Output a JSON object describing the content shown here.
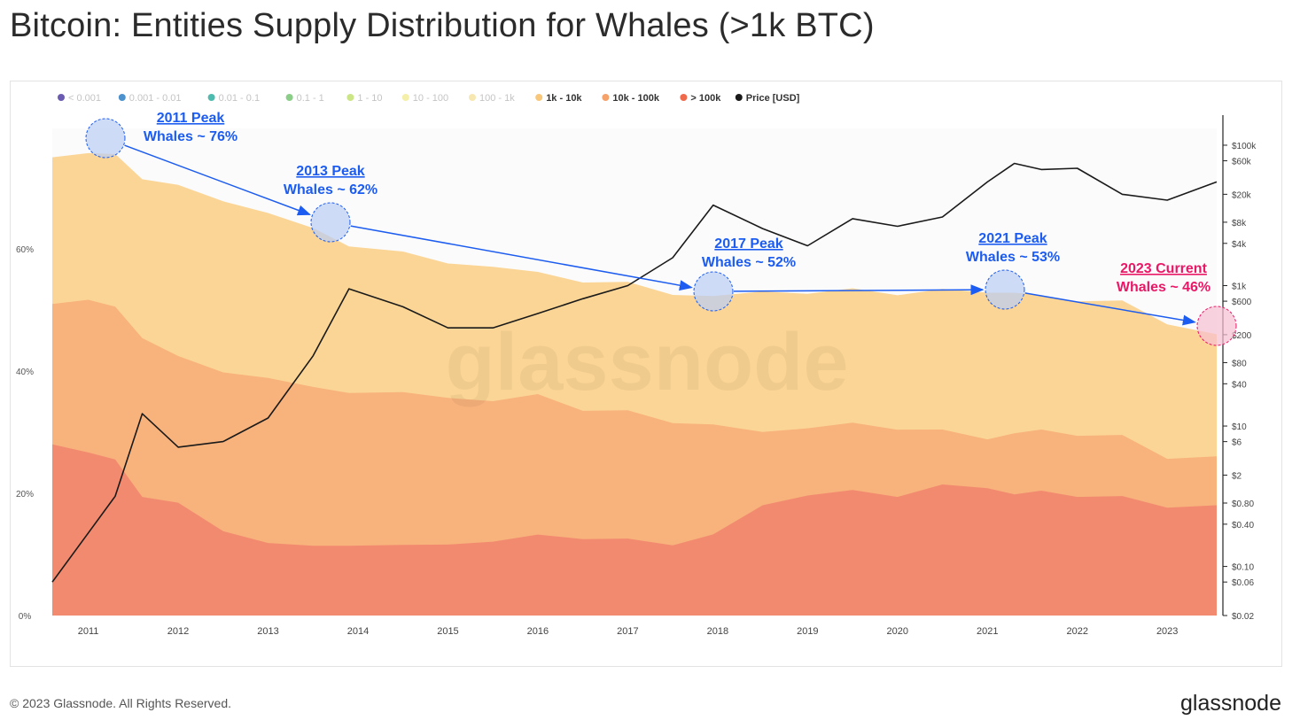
{
  "title": "Bitcoin: Entities Supply Distribution for Whales (>1k BTC)",
  "footer": {
    "copyright": "© 2023 Glassnode. All Rights Reserved.",
    "brand": "glassnode"
  },
  "watermark": "glassnode",
  "colors": {
    "lt0001": "#5b4aa8",
    "b0001_001": "#3a86c6",
    "b001_01": "#3ab5a6",
    "b01_1": "#7dc97b",
    "b1_10": "#c5e27a",
    "b10_100": "#f3eda0",
    "b100_1k": "#f6e4a8",
    "b1k_10k": "#fbd595",
    "b10k_100k": "#f8b27c",
    "gt100k": "#f28a6f",
    "price": "#1a1a1a",
    "annotation_blue": "#1c5cf0",
    "annotation_pink": "#ea1766"
  },
  "legend": [
    {
      "label": "< 0.001",
      "color": "#5b4aa8",
      "active": false
    },
    {
      "label": "0.001 - 0.01",
      "color": "#3a86c6",
      "active": false
    },
    {
      "label": "0.01 - 0.1",
      "color": "#3ab5a6",
      "active": false
    },
    {
      "label": "0.1 - 1",
      "color": "#7dc97b",
      "active": false
    },
    {
      "label": "1 - 10",
      "color": "#c5e27a",
      "active": false
    },
    {
      "label": "10 - 100",
      "color": "#f3eda0",
      "active": false
    },
    {
      "label": "100 - 1k",
      "color": "#f6e4a8",
      "active": false
    },
    {
      "label": "1k - 10k",
      "color": "#f9c779",
      "active": true
    },
    {
      "label": "10k - 100k",
      "color": "#f5a26b",
      "active": true
    },
    {
      "label": "> 100k",
      "color": "#ef6a4d",
      "active": true
    },
    {
      "label": "Price [USD]",
      "color": "#1a1a1a",
      "active": true
    }
  ],
  "annotations": [
    {
      "line1": "2011 Peak",
      "line2": "Whales ~ 76%",
      "color": "#1c5cf0"
    },
    {
      "line1": "2013 Peak",
      "line2": "Whales ~ 62%",
      "color": "#1c5cf0"
    },
    {
      "line1": "2017 Peak",
      "line2": "Whales ~ 52%",
      "color": "#1c5cf0"
    },
    {
      "line1": "2021 Peak",
      "line2": "Whales ~ 53%",
      "color": "#1c5cf0"
    },
    {
      "line1": "2023 Current",
      "line2": "Whales ~ 46%",
      "color": "#ea1766"
    }
  ],
  "chart_data": {
    "type": "area",
    "x_ticks": [
      "2011",
      "2012",
      "2013",
      "2014",
      "2015",
      "2016",
      "2017",
      "2018",
      "2019",
      "2020",
      "2021",
      "2022",
      "2023"
    ],
    "y_left_ticks": [
      "0%",
      "20%",
      "40%",
      "60%"
    ],
    "y_right_ticks": [
      "$100k",
      "$60k",
      "$20k",
      "$8k",
      "$4k",
      "$1k",
      "$600",
      "$200",
      "$80",
      "$40",
      "$10",
      "$6",
      "$2",
      "$0.80",
      "$0.40",
      "$0.10",
      "$0.06",
      "$0.02"
    ],
    "y_left_range": [
      0,
      79
    ],
    "y_right_scale": "log",
    "y_right_range": [
      0.02,
      150000
    ],
    "x_range": [
      2010.6,
      2023.55
    ],
    "grid": false,
    "legend_position": "top",
    "x": [
      2010.6,
      2011.0,
      2011.3,
      2011.6,
      2012.0,
      2012.5,
      2013.0,
      2013.5,
      2013.9,
      2014.5,
      2015.0,
      2015.5,
      2016.0,
      2016.5,
      2017.0,
      2017.5,
      2017.95,
      2018.5,
      2019.0,
      2019.5,
      2020.0,
      2020.5,
      2021.0,
      2021.3,
      2021.6,
      2022.0,
      2022.5,
      2023.0,
      2023.55
    ],
    "series": [
      {
        "name": "> 100k",
        "values": [
          28,
          27,
          25,
          20,
          18,
          14,
          12,
          11,
          12,
          11,
          12,
          12,
          13,
          13,
          12,
          12,
          13,
          18,
          20,
          20,
          20,
          21,
          21,
          20,
          20,
          20,
          19,
          18,
          18
        ]
      },
      {
        "name": "10k - 100k",
        "values": [
          51,
          52,
          50,
          46,
          42,
          40,
          39,
          37,
          37,
          36,
          36,
          35,
          36,
          34,
          33,
          32,
          31,
          30,
          31,
          31,
          31,
          30,
          29,
          30,
          30,
          30,
          29,
          26,
          26
        ]
      },
      {
        "name": "1k - 10k",
        "values": [
          75,
          76,
          75,
          72,
          70,
          68,
          66,
          63,
          61,
          59,
          58,
          57,
          56,
          55,
          54,
          53,
          52,
          53,
          53,
          53,
          53,
          53,
          53,
          53,
          52,
          52,
          51,
          48,
          46
        ]
      },
      {
        "name": "Price [USD]",
        "values": [
          0.06,
          0.3,
          1,
          15,
          5,
          6,
          13,
          100,
          900,
          500,
          250,
          250,
          400,
          650,
          1000,
          2500,
          14000,
          6500,
          3700,
          9000,
          7000,
          9500,
          30000,
          55000,
          45000,
          47000,
          20000,
          16500,
          30000
        ]
      }
    ],
    "watermark": "glassnode"
  }
}
